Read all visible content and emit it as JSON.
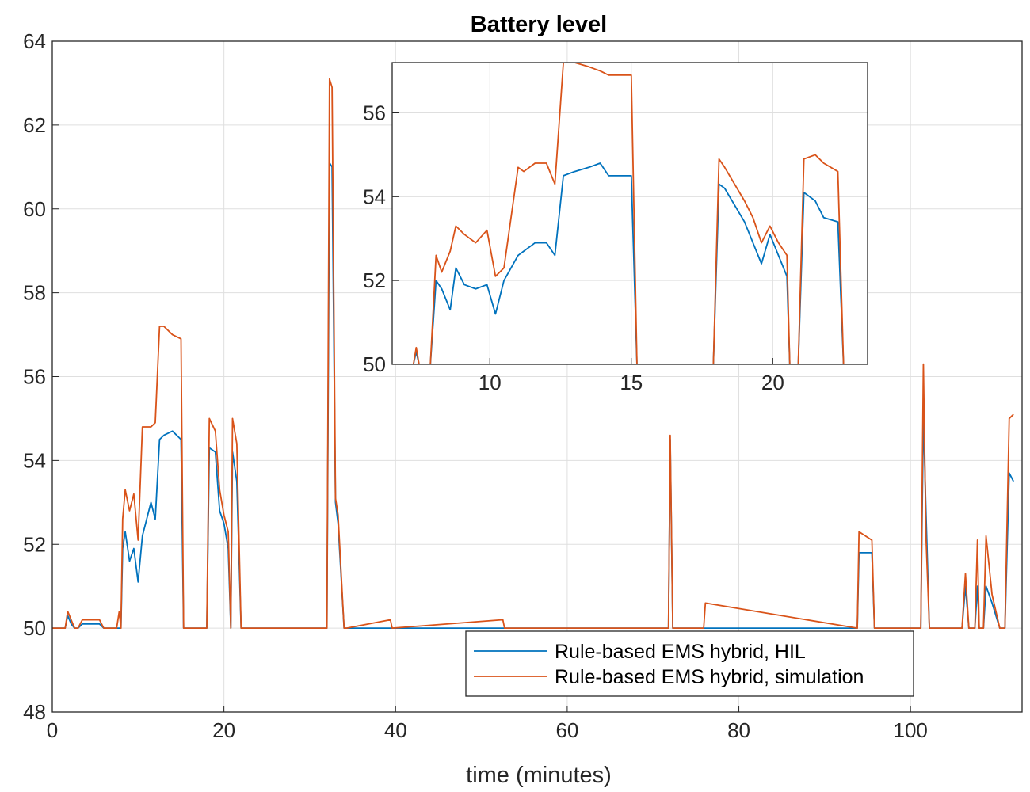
{
  "chart_data": [
    {
      "type": "line",
      "title": "Battery level",
      "x_label": "time (minutes)",
      "x": [
        0,
        1.5,
        1.8,
        2.2,
        2.6,
        3,
        3.5,
        4,
        5.5,
        6,
        7.5,
        7.8,
        8,
        8.2,
        8.5,
        9,
        9.5,
        10,
        10.5,
        11,
        11.5,
        12,
        12.5,
        13,
        14,
        15,
        15.3,
        18,
        18.3,
        19,
        19.5,
        20,
        20.5,
        20.8,
        21,
        21.5,
        22,
        22.3,
        32,
        32.3,
        32.6,
        33,
        33.3,
        34,
        34.3,
        39.4,
        39.6,
        52.5,
        52.7,
        71.8,
        72,
        72.3,
        75.9,
        76.1,
        93.8,
        94,
        95.5,
        95.8,
        101.2,
        101.5,
        101.8,
        102.2,
        102.5,
        106,
        106.4,
        106.8,
        107.5,
        107.8,
        108,
        108.5,
        108.8,
        109.5,
        110.4,
        111,
        111.5,
        112
      ],
      "series": [
        {
          "name": "Rule-based EMS hybrid, HIL",
          "color": "#0072bd",
          "values": [
            50,
            50,
            50.3,
            50.1,
            50,
            50,
            50.1,
            50.1,
            50.1,
            50,
            50,
            50,
            50,
            51.9,
            52.3,
            51.6,
            51.9,
            51.1,
            52.2,
            52.6,
            53.0,
            52.6,
            54.5,
            54.6,
            54.7,
            54.5,
            50,
            50,
            54.3,
            54.2,
            52.8,
            52.5,
            51.9,
            50,
            54.2,
            53.5,
            50,
            50,
            50,
            61.1,
            61,
            53.0,
            52.5,
            50,
            50,
            50,
            50,
            50,
            50,
            50,
            54.5,
            50,
            50,
            50,
            50,
            51.8,
            51.8,
            50,
            50,
            55.1,
            52.8,
            50,
            50,
            50,
            51,
            50,
            50,
            51,
            50,
            50,
            51,
            50.6,
            50,
            50,
            53.7,
            53.5
          ]
        },
        {
          "name": "Rule-based EMS hybrid, simulation",
          "color": "#d95319",
          "values": [
            50,
            50,
            50.4,
            50.2,
            50,
            50,
            50.2,
            50.2,
            50.2,
            50,
            50,
            50.4,
            50,
            52.6,
            53.3,
            52.8,
            53.2,
            52.1,
            54.8,
            54.8,
            54.8,
            54.9,
            57.2,
            57.2,
            57.0,
            56.9,
            50,
            50,
            55,
            54.7,
            53.3,
            52.7,
            52.3,
            50,
            55,
            54.4,
            50,
            50,
            50,
            63.1,
            62.9,
            53.1,
            52.7,
            50,
            50,
            50.2,
            50,
            50.2,
            50,
            50,
            54.6,
            50,
            50,
            50.6,
            50,
            52.3,
            52.1,
            50,
            50,
            56.3,
            52.2,
            50,
            50,
            50,
            51.3,
            50,
            50,
            52.1,
            50,
            50,
            52.2,
            50.8,
            50,
            50,
            55,
            55.1
          ]
        }
      ],
      "xlim": [
        0,
        113
      ],
      "xticks": [
        0,
        20,
        40,
        60,
        80,
        100
      ],
      "ylim": [
        48,
        64
      ],
      "yticks": [
        48,
        50,
        52,
        54,
        56,
        58,
        60,
        62,
        64
      ],
      "grid": true,
      "legend": "southeast"
    },
    {
      "type": "line",
      "x": [
        6.55,
        7.3,
        7.4,
        7.5,
        7.9,
        8.1,
        8.3,
        8.6,
        8.8,
        9.1,
        9.5,
        9.9,
        10.2,
        10.5,
        11,
        11.2,
        11.6,
        12,
        12.3,
        12.6,
        13,
        13.5,
        13.9,
        14.2,
        15,
        15.2,
        17.9,
        18.1,
        18.3,
        19,
        19.3,
        19.6,
        19.9,
        20.2,
        20.5,
        20.6,
        20.9,
        21.1,
        21.5,
        21.8,
        22.3,
        22.5,
        23.35
      ],
      "series": [
        {
          "color": "#0072bd",
          "values": [
            50,
            50,
            50.3,
            50,
            50,
            52,
            51.8,
            51.3,
            52.3,
            51.9,
            51.8,
            51.9,
            51.2,
            52.0,
            52.6,
            52.7,
            52.9,
            52.9,
            52.6,
            54.5,
            54.6,
            54.7,
            54.8,
            54.5,
            54.5,
            50,
            50,
            54.3,
            54.2,
            53.4,
            52.9,
            52.4,
            53.1,
            52.6,
            52.1,
            50,
            50,
            54.1,
            53.9,
            53.5,
            53.4,
            50,
            50
          ]
        },
        {
          "color": "#d95319",
          "values": [
            50,
            50,
            50.4,
            50,
            50,
            52.6,
            52.2,
            52.7,
            53.3,
            53.1,
            52.9,
            53.2,
            52.1,
            52.3,
            54.7,
            54.6,
            54.8,
            54.8,
            54.3,
            57.2,
            57.2,
            57.1,
            57.0,
            56.9,
            56.9,
            50,
            50,
            54.9,
            54.7,
            53.9,
            53.5,
            52.9,
            53.3,
            52.9,
            52.6,
            50,
            50,
            54.9,
            55.0,
            54.8,
            54.6,
            50,
            50
          ]
        }
      ],
      "xlim": [
        6.55,
        23.35
      ],
      "xticks": [
        10,
        15,
        20
      ],
      "ylim": [
        50,
        57.2
      ],
      "yticks": [
        50,
        52,
        54,
        56
      ],
      "grid": true
    }
  ]
}
